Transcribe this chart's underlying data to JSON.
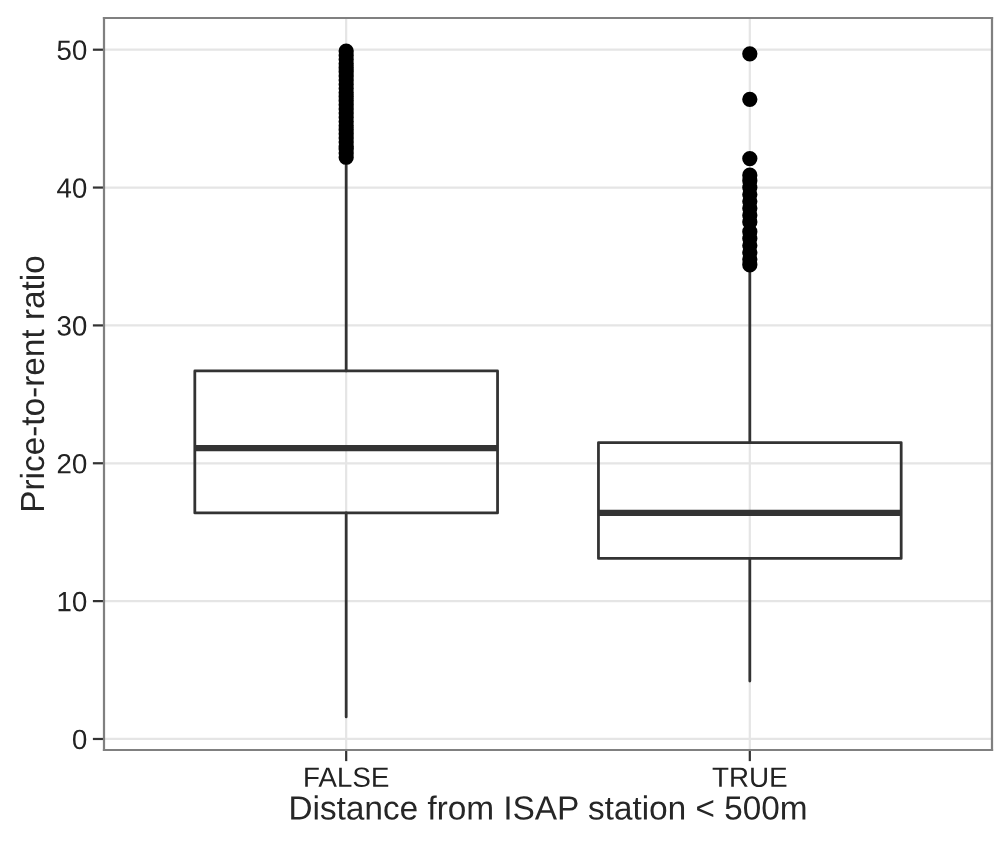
{
  "chart_data": {
    "type": "box",
    "xlabel": "Distance from ISAP station < 500m",
    "ylabel": "Price-to-rent ratio",
    "categories": [
      "FALSE",
      "TRUE"
    ],
    "boxes": [
      {
        "low": 1.6,
        "q1": 16.4,
        "median": 21.1,
        "q3": 26.7,
        "high": 42.0,
        "outliers": [
          42.2,
          42.5,
          42.8,
          43.0,
          43.3,
          43.6,
          43.9,
          44.2,
          44.5,
          44.8,
          45.1,
          45.4,
          45.7,
          46.0,
          46.3,
          46.6,
          46.9,
          47.2,
          47.5,
          47.8,
          48.1,
          48.4,
          48.7,
          49.0,
          49.3,
          49.6,
          49.9
        ]
      },
      {
        "low": 4.2,
        "q1": 13.1,
        "median": 16.4,
        "q3": 21.5,
        "high": 34.1,
        "outliers": [
          34.4,
          34.8,
          35.3,
          35.8,
          36.3,
          36.8,
          37.5,
          38.0,
          38.5,
          39.0,
          39.5,
          40.0,
          40.5,
          40.9,
          42.1,
          46.4,
          49.7
        ]
      }
    ],
    "ylim": [
      -0.8,
      52.3
    ],
    "yticks": [
      0,
      10,
      20,
      30,
      40,
      50
    ],
    "grid": true
  }
}
